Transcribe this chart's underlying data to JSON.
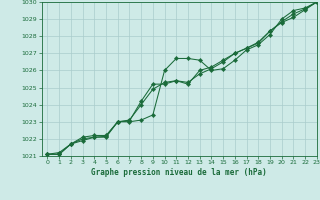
{
  "bg_color": "#ceeae7",
  "grid_color": "#aacccc",
  "line_color": "#1a6b3a",
  "title": "Graphe pression niveau de la mer (hPa)",
  "xlim": [
    -0.5,
    23
  ],
  "ylim": [
    1021.0,
    1030.0
  ],
  "xticks": [
    0,
    1,
    2,
    3,
    4,
    5,
    6,
    7,
    8,
    9,
    10,
    11,
    12,
    13,
    14,
    15,
    16,
    17,
    18,
    19,
    20,
    21,
    22,
    23
  ],
  "yticks": [
    1021,
    1022,
    1023,
    1024,
    1025,
    1026,
    1027,
    1028,
    1029,
    1030
  ],
  "line1_x": [
    0,
    1,
    2,
    3,
    4,
    5,
    6,
    7,
    8,
    9,
    10,
    11,
    12,
    13,
    14,
    15,
    16,
    17,
    18,
    19,
    20,
    21,
    22,
    23
  ],
  "line1_y": [
    1021.1,
    1021.2,
    1021.7,
    1021.9,
    1022.1,
    1022.1,
    1023.0,
    1023.0,
    1023.1,
    1023.4,
    1026.0,
    1026.7,
    1026.7,
    1026.6,
    1026.0,
    1026.1,
    1026.6,
    1027.2,
    1027.5,
    1028.1,
    1029.0,
    1029.5,
    1029.65,
    1030.0
  ],
  "line2_x": [
    0,
    1,
    2,
    3,
    4,
    5,
    6,
    7,
    8,
    9,
    10,
    11,
    12,
    13,
    14,
    15,
    16,
    17,
    18,
    19,
    20,
    21,
    22,
    23
  ],
  "line2_y": [
    1021.1,
    1021.1,
    1021.7,
    1022.1,
    1022.2,
    1022.2,
    1023.0,
    1023.1,
    1024.0,
    1024.9,
    1025.3,
    1025.4,
    1025.3,
    1025.8,
    1026.1,
    1026.5,
    1027.0,
    1027.3,
    1027.65,
    1028.3,
    1028.8,
    1029.1,
    1029.55,
    1030.0
  ],
  "line3_x": [
    0,
    1,
    2,
    3,
    4,
    5,
    6,
    7,
    8,
    9,
    10,
    11,
    12,
    13,
    14,
    15,
    16,
    17,
    18,
    19,
    20,
    21,
    22,
    23
  ],
  "line3_y": [
    1021.1,
    1021.1,
    1021.7,
    1022.0,
    1022.1,
    1022.15,
    1023.0,
    1023.05,
    1024.2,
    1025.2,
    1025.2,
    1025.4,
    1025.2,
    1026.0,
    1026.2,
    1026.6,
    1027.0,
    1027.3,
    1027.6,
    1028.3,
    1028.85,
    1029.3,
    1029.6,
    1030.0
  ]
}
